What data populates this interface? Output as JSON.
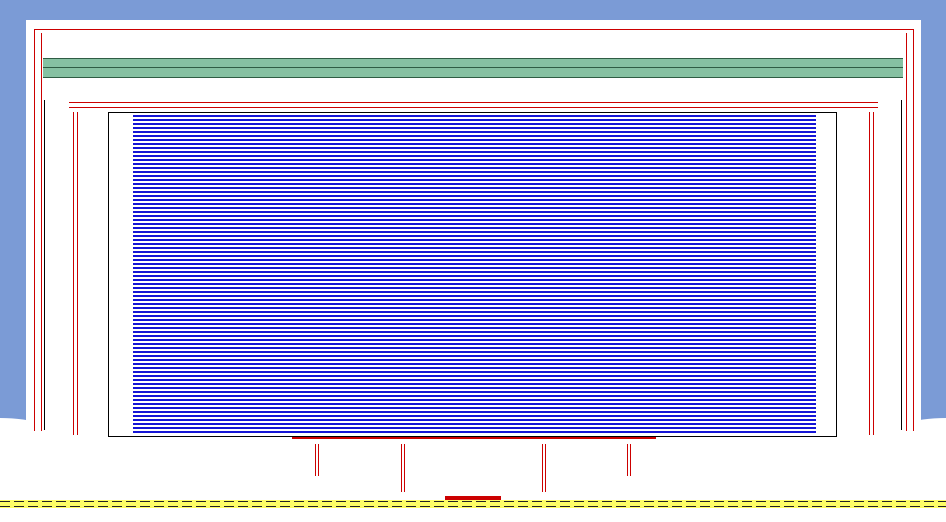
{
  "window": {
    "title": ""
  },
  "colors": {
    "backdrop": "#7b9bd6",
    "frame": "#cc0000",
    "toolbar": "#86c1a2",
    "content_stripes": "#1414d6",
    "status_track": "#ffff66"
  }
}
